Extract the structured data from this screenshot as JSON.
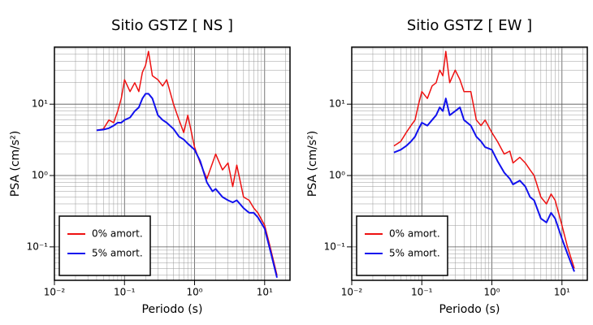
{
  "chart_data": [
    {
      "type": "line",
      "title": "Sitio GSTZ [ NS ]",
      "xlabel": "Periodo (s)",
      "ylabel": "PSA (cm/s²)",
      "xscale": "log",
      "yscale": "log",
      "grid": true,
      "legend": "lower left",
      "xlim": [
        0.01,
        23
      ],
      "ylim": [
        0.034,
        63
      ],
      "xticks": [
        {
          "value": 0.01,
          "label": "10⁻²"
        },
        {
          "value": 0.1,
          "label": "10⁻¹"
        },
        {
          "value": 1,
          "label": "10⁰"
        },
        {
          "value": 10,
          "label": "10¹"
        }
      ],
      "yticks": [
        {
          "value": 0.1,
          "label": "10⁻¹"
        },
        {
          "value": 1,
          "label": "10⁰"
        },
        {
          "value": 10,
          "label": "10¹"
        }
      ],
      "x": [
        0.04,
        0.05,
        0.06,
        0.07,
        0.08,
        0.09,
        0.1,
        0.12,
        0.14,
        0.16,
        0.18,
        0.2,
        0.22,
        0.25,
        0.3,
        0.35,
        0.4,
        0.5,
        0.6,
        0.7,
        0.8,
        1.0,
        1.2,
        1.5,
        1.8,
        2.0,
        2.5,
        3.0,
        3.5,
        4.0,
        5.0,
        6.0,
        7.0,
        8.0,
        10,
        12,
        15
      ],
      "series": [
        {
          "name": "0% amort.",
          "color": "#ee1111",
          "values": [
            4.3,
            4.5,
            6,
            5.5,
            8,
            12,
            22,
            15,
            20,
            15,
            28,
            35,
            55,
            25,
            22,
            18,
            22,
            10,
            6,
            4,
            7,
            2.5,
            1.5,
            0.9,
            1.5,
            2.0,
            1.2,
            1.5,
            0.7,
            1.4,
            0.5,
            0.45,
            0.35,
            0.3,
            0.2,
            0.1,
            0.04
          ]
        },
        {
          "name": "5% amort.",
          "color": "#1111ee",
          "values": [
            4.3,
            4.4,
            4.6,
            5,
            5.5,
            5.5,
            6,
            6.5,
            8,
            9,
            12,
            14,
            14,
            12,
            7,
            6,
            5.5,
            4.5,
            3.5,
            3.2,
            2.8,
            2.3,
            1.6,
            0.8,
            0.6,
            0.65,
            0.5,
            0.45,
            0.42,
            0.45,
            0.35,
            0.3,
            0.3,
            0.26,
            0.18,
            0.09,
            0.037
          ]
        }
      ]
    },
    {
      "type": "line",
      "title": "Sitio GSTZ [ EW ]",
      "xlabel": "Periodo (s)",
      "ylabel": "PSA (cm/s²)",
      "xscale": "log",
      "yscale": "log",
      "grid": true,
      "legend": "lower left",
      "xlim": [
        0.01,
        23
      ],
      "ylim": [
        0.034,
        63
      ],
      "xticks": [
        {
          "value": 0.01,
          "label": "10⁻²"
        },
        {
          "value": 0.1,
          "label": "10⁻¹"
        },
        {
          "value": 1,
          "label": "10⁰"
        },
        {
          "value": 10,
          "label": "10¹"
        }
      ],
      "yticks": [
        {
          "value": 0.1,
          "label": "10⁻¹"
        },
        {
          "value": 1,
          "label": "10⁰"
        },
        {
          "value": 10,
          "label": "10¹"
        }
      ],
      "x": [
        0.04,
        0.05,
        0.06,
        0.07,
        0.08,
        0.09,
        0.1,
        0.12,
        0.14,
        0.16,
        0.18,
        0.2,
        0.22,
        0.25,
        0.3,
        0.35,
        0.4,
        0.5,
        0.6,
        0.7,
        0.8,
        1.0,
        1.2,
        1.5,
        1.8,
        2.0,
        2.5,
        3.0,
        3.5,
        4.0,
        5.0,
        6.0,
        7.0,
        8.0,
        10,
        12,
        15
      ],
      "series": [
        {
          "name": "0% amort.",
          "color": "#ee1111",
          "values": [
            2.6,
            3,
            4,
            5,
            6,
            10,
            15,
            12,
            18,
            20,
            30,
            25,
            55,
            20,
            30,
            22,
            15,
            15,
            6,
            5,
            6,
            4,
            3,
            2,
            2.2,
            1.5,
            1.8,
            1.5,
            1.2,
            1.0,
            0.5,
            0.4,
            0.55,
            0.45,
            0.2,
            0.1,
            0.05
          ]
        },
        {
          "name": "5% amort.",
          "color": "#1111ee",
          "values": [
            2.1,
            2.3,
            2.6,
            3,
            3.5,
            4.5,
            5.5,
            5,
            6,
            7,
            9,
            8,
            12,
            7,
            8,
            9,
            6,
            5,
            3.5,
            3,
            2.5,
            2.3,
            1.6,
            1.1,
            0.9,
            0.75,
            0.85,
            0.7,
            0.5,
            0.45,
            0.25,
            0.22,
            0.3,
            0.25,
            0.13,
            0.08,
            0.045
          ]
        }
      ]
    }
  ]
}
